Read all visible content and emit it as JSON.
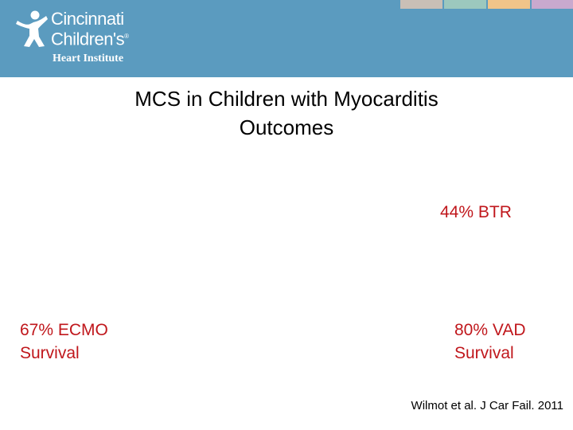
{
  "header": {
    "logo": {
      "line1": "Cincinnati",
      "line2": "Children's",
      "trademark": "®",
      "subtitle": "Heart Institute"
    },
    "accent_colors": [
      "#c9bfb6",
      "#9cc8be",
      "#f0c489",
      "#c9a9ce"
    ],
    "band_color": "#5b9bbf"
  },
  "slide": {
    "title_line1": "MCS in Children with Myocarditis",
    "title_line2": "Outcomes",
    "stats": {
      "btr": "44% BTR",
      "ecmo_line1": "67% ECMO",
      "ecmo_line2": "Survival",
      "vad_line1": "80% VAD",
      "vad_line2": "Survival"
    },
    "stat_color": "#c0171c",
    "citation": "Wilmot et al.  J Car Fail. 2011"
  }
}
